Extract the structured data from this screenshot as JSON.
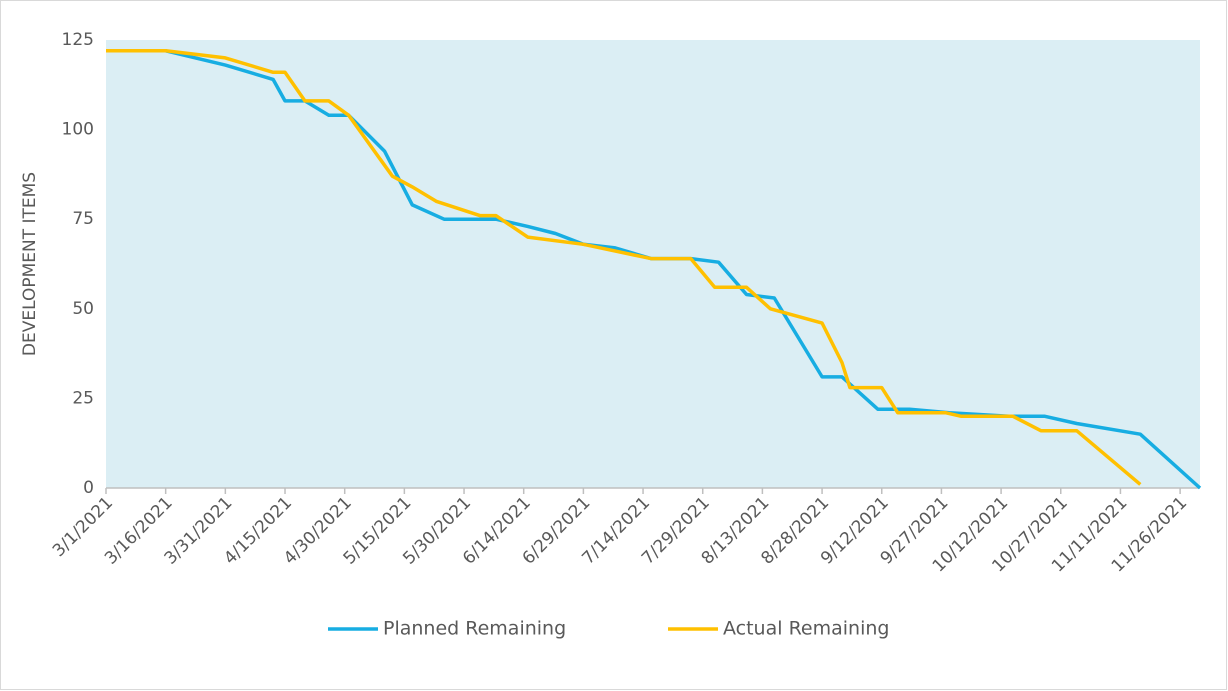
{
  "chart_data": {
    "type": "line",
    "ylabel": "DEVELOPMENT ITEMS",
    "xlim": [
      "3/1/2021",
      "12/1/2021"
    ],
    "xticks": [
      "3/1/2021",
      "3/16/2021",
      "3/31/2021",
      "4/15/2021",
      "4/30/2021",
      "5/15/2021",
      "5/30/2021",
      "6/14/2021",
      "6/29/2021",
      "7/14/2021",
      "7/29/2021",
      "8/13/2021",
      "8/28/2021",
      "9/12/2021",
      "9/27/2021",
      "10/12/2021",
      "10/27/2021",
      "11/11/2021",
      "11/26/2021"
    ],
    "ylim": [
      0,
      125
    ],
    "yticks": [
      0,
      25,
      50,
      75,
      100,
      125
    ],
    "plot_background": "#dbeef4",
    "legend": "bottom",
    "series": [
      {
        "name": "Planned Remaining",
        "color": "#17ade2",
        "x": [
          "3/1/2021",
          "3/16/2021",
          "3/31/2021",
          "4/12/2021",
          "4/15/2021",
          "4/20/2021",
          "4/26/2021",
          "5/1/2021",
          "5/10/2021",
          "5/17/2021",
          "5/25/2021",
          "6/7/2021",
          "6/15/2021",
          "6/22/2021",
          "6/29/2021",
          "7/7/2021",
          "7/16/2021",
          "7/26/2021",
          "8/2/2021",
          "8/9/2021",
          "8/16/2021",
          "8/28/2021",
          "9/2/2021",
          "9/11/2021",
          "9/19/2021",
          "9/29/2021",
          "10/14/2021",
          "10/23/2021",
          "10/31/2021",
          "11/16/2021",
          "12/1/2021"
        ],
        "values": [
          122,
          122,
          118,
          114,
          108,
          108,
          104,
          104,
          94,
          79,
          75,
          75,
          73,
          71,
          68,
          67,
          64,
          64,
          63,
          54,
          53,
          31,
          31,
          22,
          22,
          21,
          20,
          20,
          18,
          15,
          0
        ]
      },
      {
        "name": "Actual Remaining",
        "color": "#ffc000",
        "x": [
          "3/1/2021",
          "3/16/2021",
          "3/31/2021",
          "4/12/2021",
          "4/15/2021",
          "4/20/2021",
          "4/26/2021",
          "5/1/2021",
          "5/12/2021",
          "5/17/2021",
          "5/23/2021",
          "6/3/2021",
          "6/7/2021",
          "6/15/2021",
          "6/29/2021",
          "7/16/2021",
          "7/26/2021",
          "8/1/2021",
          "8/9/2021",
          "8/15/2021",
          "8/28/2021",
          "9/2/2021",
          "9/4/2021",
          "9/12/2021",
          "9/16/2021",
          "9/28/2021",
          "10/2/2021",
          "10/15/2021",
          "10/22/2021",
          "10/31/2021",
          "11/16/2021"
        ],
        "values": [
          122,
          122,
          120,
          116,
          116,
          108,
          108,
          104,
          87,
          84,
          80,
          76,
          76,
          70,
          68,
          64,
          64,
          56,
          56,
          50,
          46,
          35,
          28,
          28,
          21,
          21,
          20,
          20,
          16,
          16,
          1
        ]
      }
    ]
  }
}
